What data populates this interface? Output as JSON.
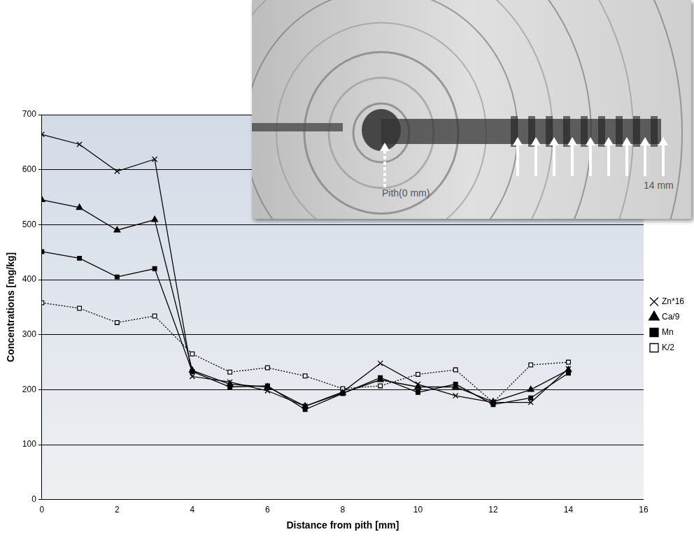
{
  "chart_data": {
    "type": "line",
    "x_label": "Distance from pith [mm]",
    "y_label": "Concentrations [mg/kg]",
    "x": [
      0,
      1,
      2,
      3,
      4,
      5,
      6,
      7,
      8,
      9,
      10,
      11,
      12,
      13,
      14
    ],
    "series": [
      {
        "name": "Zn*16",
        "color": "#000000",
        "marker": "x",
        "line_style": "solid",
        "values": [
          664,
          646,
          597,
          619,
          224,
          214,
          198,
          170,
          196,
          248,
          210,
          189,
          177,
          177,
          238
        ]
      },
      {
        "name": "Ca/9",
        "color": "#000000",
        "marker": "triangle",
        "line_style": "solid",
        "values": [
          545,
          531,
          490,
          509,
          235,
          210,
          205,
          170,
          194,
          218,
          205,
          205,
          178,
          200,
          236
        ]
      },
      {
        "name": "Mn",
        "color": "#000000",
        "marker": "square",
        "line_style": "solid",
        "values": [
          451,
          439,
          405,
          420,
          233,
          205,
          207,
          164,
          193,
          222,
          195,
          210,
          173,
          185,
          230
        ]
      },
      {
        "name": "K/2",
        "color": "#000000",
        "marker": "open_square",
        "line_style": "dotted",
        "values": [
          358,
          348,
          322,
          334,
          265,
          232,
          240,
          225,
          202,
          207,
          228,
          236,
          177,
          245,
          250
        ]
      }
    ],
    "xlim": [
      0,
      16
    ],
    "xticks": [
      0,
      2,
      4,
      6,
      8,
      10,
      12,
      14,
      16
    ],
    "ylim": [
      0,
      700
    ],
    "yticks": [
      0,
      100,
      200,
      300,
      400,
      500,
      600,
      700
    ],
    "grid": "y",
    "legend": "right",
    "annotations": [
      "Pith(0 mm)",
      "14 mm"
    ]
  }
}
